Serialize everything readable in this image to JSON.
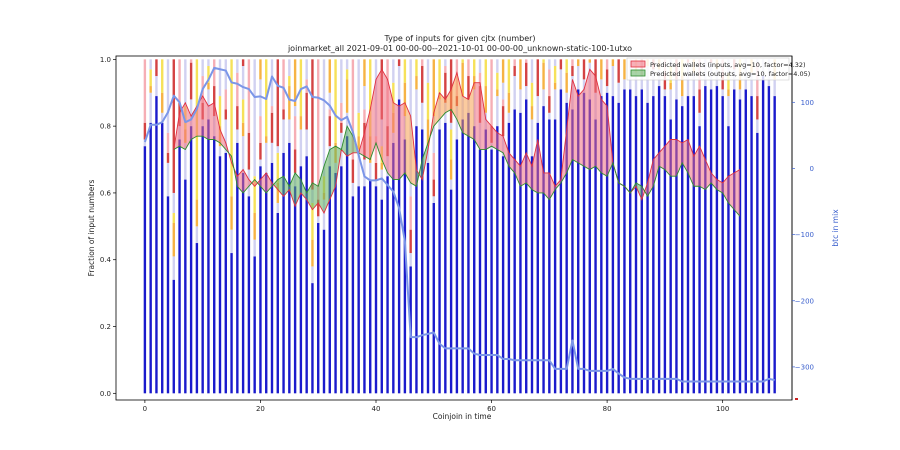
{
  "chart_data": {
    "type": "bar",
    "title": "Type of inputs for given cjtx (number)",
    "subtitle": "joinmarket_all 2021-09-01 00-00-00--2021-10-01 00-00-00_unknown-static-100-1utxo",
    "xlabel": "Coinjoin in time",
    "ylabel": "Fraction of input numbers",
    "y2label": "btc in mix",
    "xlim": [
      -5,
      112
    ],
    "ylim": [
      -0.02,
      1.01
    ],
    "y2lim": [
      -350,
      170
    ],
    "xticks": [
      "0",
      "20",
      "40",
      "60",
      "80",
      "100"
    ],
    "yticks": [
      "0.0",
      "0.2",
      "0.4",
      "0.6",
      "0.8",
      "1.0"
    ],
    "y2ticks": [
      "100",
      "0",
      "−100",
      "−200",
      "−300"
    ],
    "legend_position": "top-right",
    "colors": {
      "bar_blue": "#1a1acc",
      "bar_light": "#c9c9ef",
      "bar_yellow": "#f5dc3c",
      "bar_orange": "#f5a623",
      "bar_pink": "#f4a0a8",
      "bar_red": "#cc2222",
      "inputs_line": "#e03040",
      "outputs_line": "#2e8b2e",
      "fill_red": "#f07080",
      "fill_orange": "#f8a050",
      "fill_green": "#60b060",
      "btc_line": "#7b96e8",
      "y2_axis": "#3a5fcd"
    },
    "series": [
      {
        "name": "Predicted wallets (inputs, avg=10, factor=4.32)",
        "x": [
          5,
          6,
          7,
          8,
          9,
          10,
          11,
          12,
          13,
          14,
          15,
          16,
          17,
          18,
          19,
          20,
          21,
          22,
          23,
          24,
          25,
          26,
          27,
          28,
          29,
          30,
          31,
          32,
          33,
          34,
          35,
          36,
          37,
          38,
          39,
          40,
          41,
          42,
          43,
          44,
          45,
          46,
          47,
          48,
          49,
          50,
          51,
          52,
          53,
          54,
          55,
          56,
          57,
          58,
          59,
          60,
          61,
          62,
          63,
          64,
          65,
          66,
          67,
          68,
          69,
          70,
          71,
          72,
          73,
          74,
          75,
          76,
          77,
          78,
          79,
          80,
          81,
          82,
          83,
          84,
          85,
          86,
          87,
          88,
          89,
          90,
          91,
          92,
          93,
          94,
          95,
          96,
          97,
          98,
          99,
          100,
          101,
          102,
          103
        ],
        "values": [
          0.73,
          0.84,
          0.87,
          0.83,
          0.86,
          0.89,
          0.86,
          0.87,
          0.79,
          0.75,
          0.69,
          0.65,
          0.67,
          0.64,
          0.62,
          0.64,
          0.66,
          0.63,
          0.61,
          0.59,
          0.61,
          0.56,
          0.6,
          0.58,
          0.55,
          0.57,
          0.54,
          0.58,
          0.62,
          0.73,
          0.71,
          0.72,
          0.72,
          0.78,
          0.85,
          0.94,
          0.97,
          0.94,
          0.87,
          0.86,
          0.87,
          0.83,
          0.67,
          0.64,
          0.73,
          0.84,
          0.9,
          0.88,
          0.91,
          0.96,
          0.89,
          0.88,
          0.93,
          0.93,
          0.82,
          0.8,
          0.78,
          0.77,
          0.72,
          0.7,
          0.68,
          0.72,
          0.68,
          0.76,
          0.66,
          0.66,
          0.62,
          0.64,
          0.79,
          0.94,
          0.89,
          0.91,
          0.97,
          0.95,
          0.88,
          0.86,
          0.69,
          0.63,
          0.62,
          0.6,
          0.62,
          0.58,
          0.63,
          0.7,
          0.72,
          0.74,
          0.76,
          0.76,
          0.75,
          0.76,
          0.71,
          0.74,
          0.7,
          0.66,
          0.64,
          0.63,
          0.65,
          0.66,
          0.67
        ]
      },
      {
        "name": "Predicted wallets (outputs, avg=10, factor=4.05)",
        "x": [
          5,
          6,
          7,
          8,
          9,
          10,
          11,
          12,
          13,
          14,
          15,
          16,
          17,
          18,
          19,
          20,
          21,
          22,
          23,
          24,
          25,
          26,
          27,
          28,
          29,
          30,
          31,
          32,
          33,
          34,
          35,
          36,
          37,
          38,
          39,
          40,
          41,
          42,
          43,
          44,
          45,
          46,
          47,
          48,
          49,
          50,
          51,
          52,
          53,
          54,
          55,
          56,
          57,
          58,
          59,
          60,
          61,
          62,
          63,
          64,
          65,
          66,
          67,
          68,
          69,
          70,
          71,
          72,
          73,
          74,
          75,
          76,
          77,
          78,
          79,
          80,
          81,
          82,
          83,
          84,
          85,
          86,
          87,
          88,
          89,
          90,
          91,
          92,
          93,
          94,
          95,
          96,
          97,
          98,
          99,
          100,
          101,
          102,
          103
        ],
        "values": [
          0.73,
          0.74,
          0.73,
          0.76,
          0.77,
          0.77,
          0.76,
          0.76,
          0.75,
          0.73,
          0.71,
          0.62,
          0.6,
          0.62,
          0.64,
          0.62,
          0.6,
          0.62,
          0.64,
          0.65,
          0.62,
          0.66,
          0.64,
          0.6,
          0.63,
          0.62,
          0.68,
          0.73,
          0.74,
          0.73,
          0.8,
          0.77,
          0.72,
          0.71,
          0.7,
          0.75,
          0.7,
          0.66,
          0.64,
          0.64,
          0.66,
          0.63,
          0.62,
          0.7,
          0.75,
          0.8,
          0.82,
          0.84,
          0.85,
          0.82,
          0.78,
          0.77,
          0.76,
          0.73,
          0.73,
          0.74,
          0.73,
          0.72,
          0.68,
          0.66,
          0.62,
          0.63,
          0.61,
          0.6,
          0.6,
          0.58,
          0.61,
          0.63,
          0.66,
          0.7,
          0.69,
          0.68,
          0.67,
          0.68,
          0.66,
          0.65,
          0.69,
          0.63,
          0.62,
          0.6,
          0.63,
          0.62,
          0.59,
          0.62,
          0.68,
          0.67,
          0.65,
          0.65,
          0.69,
          0.66,
          0.62,
          0.62,
          0.61,
          0.63,
          0.61,
          0.6,
          0.57,
          0.55,
          0.53
        ]
      },
      {
        "name": "btc in mix",
        "axis": "right",
        "x": [
          0,
          1,
          2,
          3,
          4,
          5,
          6,
          7,
          8,
          9,
          10,
          11,
          12,
          13,
          14,
          15,
          16,
          17,
          18,
          19,
          20,
          21,
          22,
          23,
          24,
          25,
          26,
          27,
          28,
          29,
          30,
          31,
          32,
          33,
          34,
          35,
          36,
          37,
          38,
          39,
          40,
          41,
          42,
          43,
          44,
          45,
          46,
          47,
          48,
          49,
          50,
          51,
          52,
          53,
          54,
          55,
          56,
          57,
          58,
          59,
          60,
          61,
          62,
          63,
          64,
          65,
          66,
          67,
          68,
          69,
          70,
          71,
          72,
          73,
          74,
          75,
          76,
          77,
          78,
          79,
          80,
          81,
          82,
          83,
          84,
          85,
          86,
          87,
          88,
          89,
          90,
          91,
          92,
          93,
          94,
          95,
          96,
          97,
          98,
          99,
          100,
          101,
          102,
          103,
          104,
          105,
          106,
          107,
          108,
          109
        ],
        "values": [
          40,
          66,
          66,
          70,
          85,
          110,
          100,
          70,
          74,
          90,
          120,
          134,
          152,
          150,
          148,
          130,
          128,
          123,
          120,
          108,
          109,
          105,
          139,
          125,
          122,
          104,
          102,
          120,
          124,
          108,
          107,
          103,
          95,
          80,
          73,
          78,
          55,
          20,
          -12,
          -18,
          -18,
          -15,
          -25,
          -35,
          -60,
          -110,
          -255,
          -255,
          -252,
          -250,
          -248,
          -265,
          -272,
          -272,
          -272,
          -272,
          -272,
          -280,
          -282,
          -282,
          -282,
          -282,
          -288,
          -288,
          -290,
          -290,
          -290,
          -290,
          -290,
          -290,
          -290,
          -303,
          -303,
          -303,
          -260,
          -303,
          -303,
          -306,
          -306,
          -306,
          -306,
          -303,
          -310,
          -316,
          -318,
          -318,
          -318,
          -318,
          -318,
          -318,
          -318,
          -318,
          -318,
          -322,
          -322,
          -322,
          -322,
          -322,
          -322,
          -322,
          -322,
          -322,
          -322,
          -322,
          -322,
          -322,
          -322,
          -322,
          -318,
          -320
        ]
      }
    ],
    "bars": {
      "x": [
        0,
        1,
        2,
        3,
        4,
        5,
        6,
        7,
        8,
        9,
        10,
        11,
        12,
        13,
        14,
        15,
        16,
        17,
        18,
        19,
        20,
        21,
        22,
        23,
        24,
        25,
        26,
        27,
        28,
        29,
        30,
        31,
        32,
        33,
        34,
        35,
        36,
        37,
        38,
        39,
        40,
        41,
        42,
        43,
        44,
        45,
        46,
        47,
        48,
        49,
        50,
        51,
        52,
        53,
        54,
        55,
        56,
        57,
        58,
        59,
        60,
        61,
        62,
        63,
        64,
        65,
        66,
        67,
        68,
        69,
        70,
        71,
        72,
        73,
        74,
        75,
        76,
        77,
        78,
        79,
        80,
        81,
        82,
        83,
        84,
        85,
        86,
        87,
        88,
        89,
        90,
        91,
        92,
        93,
        94,
        95,
        96,
        97,
        98,
        99,
        100,
        101,
        102,
        103,
        104,
        105,
        106,
        107,
        108,
        109
      ],
      "blue_fraction": [
        0.74,
        0.81,
        0.89,
        0.81,
        0.59,
        0.34,
        0.76,
        0.64,
        0.8,
        0.45,
        0.8,
        0.82,
        0.77,
        0.71,
        0.72,
        0.42,
        0.75,
        0.66,
        0.59,
        0.41,
        0.68,
        0.66,
        0.69,
        0.54,
        0.72,
        0.75,
        0.62,
        0.68,
        0.71,
        0.33,
        0.51,
        0.49,
        0.68,
        0.66,
        0.68,
        0.77,
        0.59,
        0.62,
        0.62,
        0.64,
        0.62,
        0.58,
        0.65,
        0.75,
        0.88,
        0.76,
        0.38,
        0.8,
        0.79,
        0.69,
        0.57,
        0.79,
        0.81,
        0.61,
        0.76,
        0.82,
        0.84,
        0.8,
        0.73,
        0.79,
        0.73,
        0.8,
        0.71,
        0.81,
        0.85,
        0.84,
        0.88,
        0.71,
        0.81,
        0.86,
        0.82,
        0.82,
        0.91,
        0.87,
        0.85,
        0.91,
        0.9,
        0.88,
        0.82,
        0.89,
        0.9,
        0.89,
        0.87,
        0.91,
        0.91,
        0.89,
        0.91,
        0.87,
        0.89,
        0.92,
        0.89,
        0.82,
        0.88,
        0.86,
        0.89,
        0.89,
        0.8,
        0.92,
        0.91,
        0.92,
        0.89,
        0.8,
        0.91,
        0.88,
        0.91,
        0.89,
        0.78,
        0.95,
        0.92,
        0.89
      ]
    }
  },
  "legend": {
    "inputs_label": "Predicted wallets (inputs, avg=10, factor=4.32)",
    "outputs_label": "Predicted wallets (outputs, avg=10, factor=4.05)"
  }
}
